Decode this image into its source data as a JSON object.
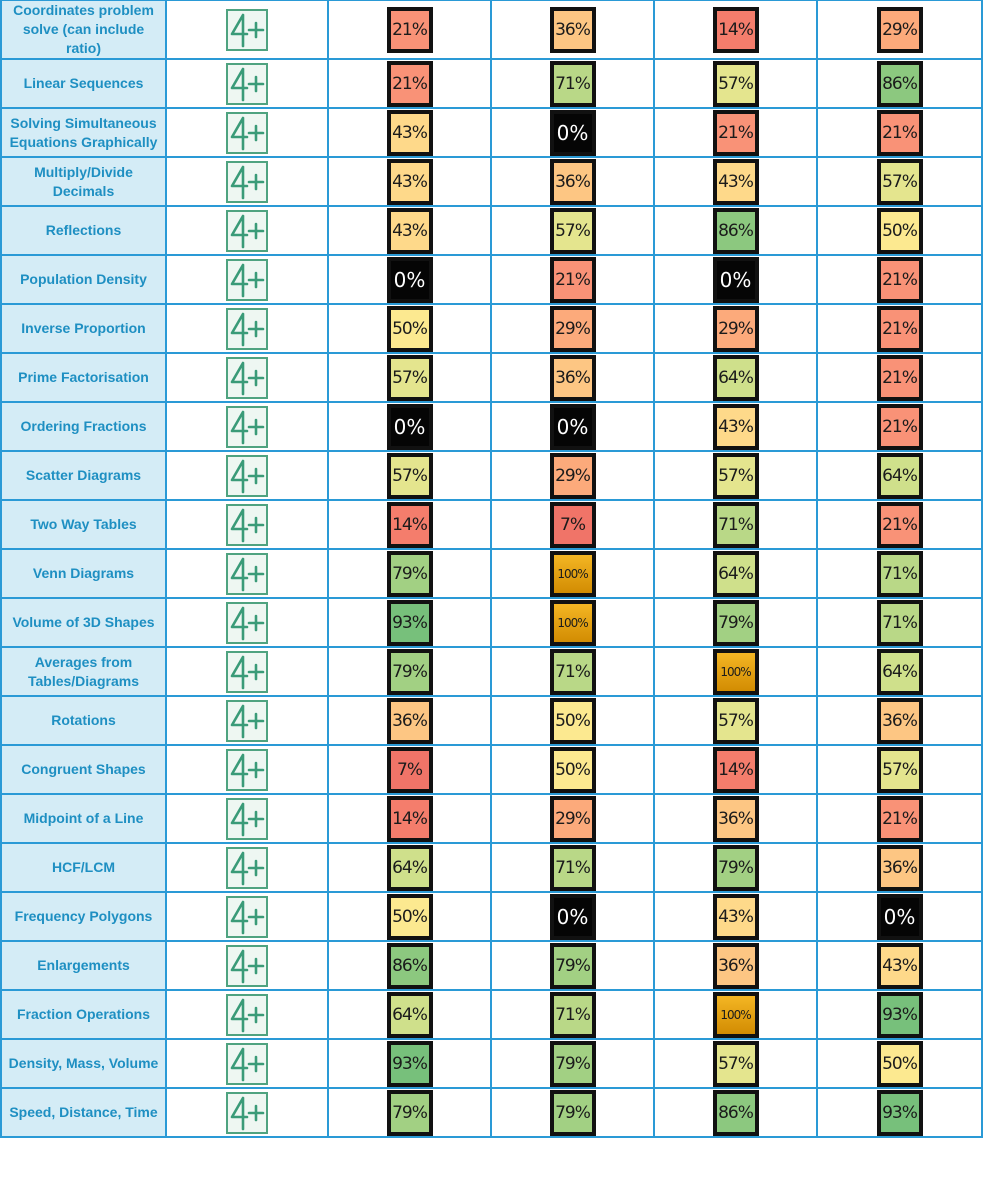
{
  "grade_badge": {
    "label": "4+",
    "color": "#3a9b78"
  },
  "rows": [
    {
      "topic": "Coordinates problem solve (can include ratio)",
      "scores": [
        "21%",
        "36%",
        "14%",
        "29%"
      ]
    },
    {
      "topic": "Linear Sequences",
      "scores": [
        "21%",
        "71%",
        "57%",
        "86%"
      ]
    },
    {
      "topic": "Solving Simultaneous Equations Graphically",
      "scores": [
        "43%",
        "0%",
        "21%",
        "21%"
      ]
    },
    {
      "topic": "Multiply/Divide Decimals",
      "scores": [
        "43%",
        "36%",
        "43%",
        "57%"
      ]
    },
    {
      "topic": "Reflections",
      "scores": [
        "43%",
        "57%",
        "86%",
        "50%"
      ]
    },
    {
      "topic": "Population Density",
      "scores": [
        "0%",
        "21%",
        "0%",
        "21%"
      ]
    },
    {
      "topic": "Inverse Proportion",
      "scores": [
        "50%",
        "29%",
        "29%",
        "21%"
      ]
    },
    {
      "topic": "Prime Factorisation",
      "scores": [
        "57%",
        "36%",
        "64%",
        "21%"
      ]
    },
    {
      "topic": "Ordering Fractions",
      "scores": [
        "0%",
        "0%",
        "43%",
        "21%"
      ]
    },
    {
      "topic": "Scatter Diagrams",
      "scores": [
        "57%",
        "29%",
        "57%",
        "64%"
      ]
    },
    {
      "topic": "Two Way Tables",
      "scores": [
        "14%",
        "7%",
        "71%",
        "21%"
      ]
    },
    {
      "topic": "Venn Diagrams",
      "scores": [
        "79%",
        "100%",
        "64%",
        "71%"
      ]
    },
    {
      "topic": "Volume of 3D Shapes",
      "scores": [
        "93%",
        "100%",
        "79%",
        "71%"
      ]
    },
    {
      "topic": "Averages from Tables/Diagrams",
      "scores": [
        "79%",
        "71%",
        "100%",
        "64%"
      ]
    },
    {
      "topic": "Rotations",
      "scores": [
        "36%",
        "50%",
        "57%",
        "36%"
      ]
    },
    {
      "topic": "Congruent Shapes",
      "scores": [
        "7%",
        "50%",
        "14%",
        "57%"
      ]
    },
    {
      "topic": "Midpoint of a Line",
      "scores": [
        "14%",
        "29%",
        "36%",
        "21%"
      ]
    },
    {
      "topic": "HCF/LCM",
      "scores": [
        "64%",
        "71%",
        "79%",
        "36%"
      ]
    },
    {
      "topic": "Frequency Polygons",
      "scores": [
        "50%",
        "0%",
        "43%",
        "0%"
      ]
    },
    {
      "topic": "Enlargements",
      "scores": [
        "86%",
        "79%",
        "36%",
        "43%"
      ]
    },
    {
      "topic": "Fraction Operations",
      "scores": [
        "64%",
        "71%",
        "100%",
        "93%"
      ]
    },
    {
      "topic": "Density, Mass, Volume",
      "scores": [
        "93%",
        "79%",
        "57%",
        "50%"
      ]
    },
    {
      "topic": "Speed, Distance, Time",
      "scores": [
        "79%",
        "79%",
        "86%",
        "93%"
      ]
    }
  ],
  "score_colors": {
    "0": "#050505",
    "7": "#f07468",
    "14": "#f47d6c",
    "21": "#f99277",
    "29": "#fcaa7b",
    "36": "#fdc683",
    "43": "#fed98a",
    "50": "#fce990",
    "57": "#e4e58e",
    "64": "#cfe08b",
    "71": "#b9d887",
    "79": "#a2d083",
    "86": "#8cc87f",
    "93": "#77c07b",
    "100": "#e8a10b"
  }
}
